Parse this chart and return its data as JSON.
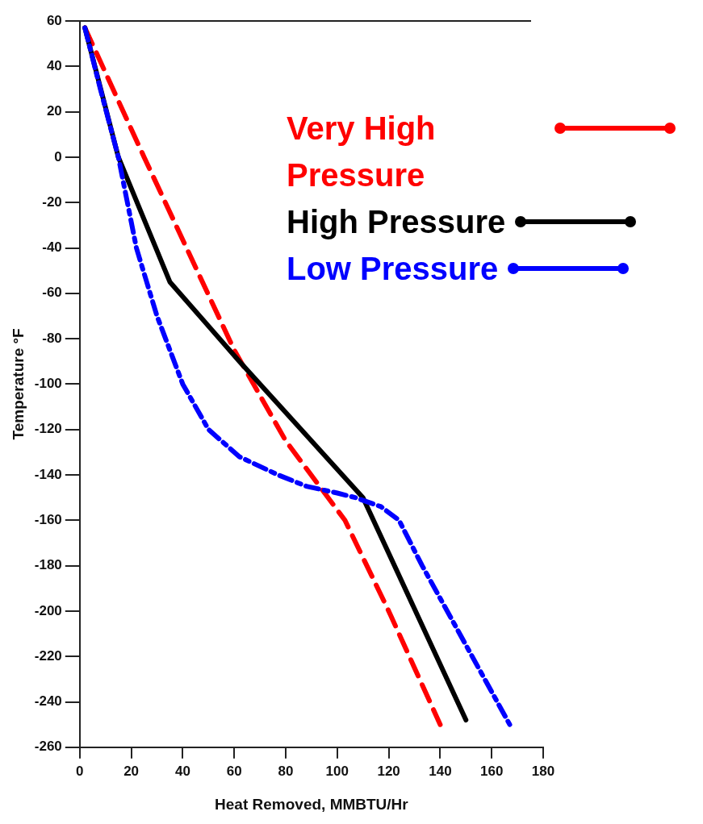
{
  "chart_data": {
    "type": "line",
    "xlabel": "Heat Removed, MMBTU/Hr",
    "ylabel": "Temperature °F",
    "xlim": [
      0,
      180
    ],
    "xticks": [
      0,
      20,
      40,
      60,
      80,
      100,
      120,
      140,
      160,
      180
    ],
    "ylim": [
      -260,
      60
    ],
    "yticks": [
      60,
      40,
      20,
      0,
      -20,
      -40,
      -60,
      -80,
      -100,
      -120,
      -140,
      -160,
      -180,
      -200,
      -220,
      -240,
      -260
    ],
    "grid": false,
    "legend": "top right",
    "marker": "none",
    "series": [
      {
        "name": "Very High Pressure",
        "color": "#ff0000",
        "line_style": "dashed",
        "x": [
          2,
          25,
          60,
          80,
          103,
          120,
          140
        ],
        "values": [
          57,
          0,
          -85,
          -125,
          -160,
          -200,
          -250
        ]
      },
      {
        "name": "High Pressure",
        "color": "#000000",
        "line_style": "solid",
        "x": [
          2,
          15,
          35,
          62,
          110,
          150
        ],
        "values": [
          57,
          0,
          -55,
          -90,
          -150,
          -248
        ]
      },
      {
        "name": "Low Pressure",
        "color": "#0000ff",
        "line_style": "dashdot",
        "x": [
          2,
          8,
          15,
          22,
          30,
          40,
          50,
          62,
          77,
          88,
          100,
          107,
          117,
          124,
          133,
          150,
          167
        ],
        "values": [
          57,
          30,
          0,
          -40,
          -70,
          -100,
          -120,
          -132,
          -140,
          -145,
          -148,
          -150,
          -154,
          -160,
          -180,
          -215,
          -250
        ]
      }
    ]
  }
}
